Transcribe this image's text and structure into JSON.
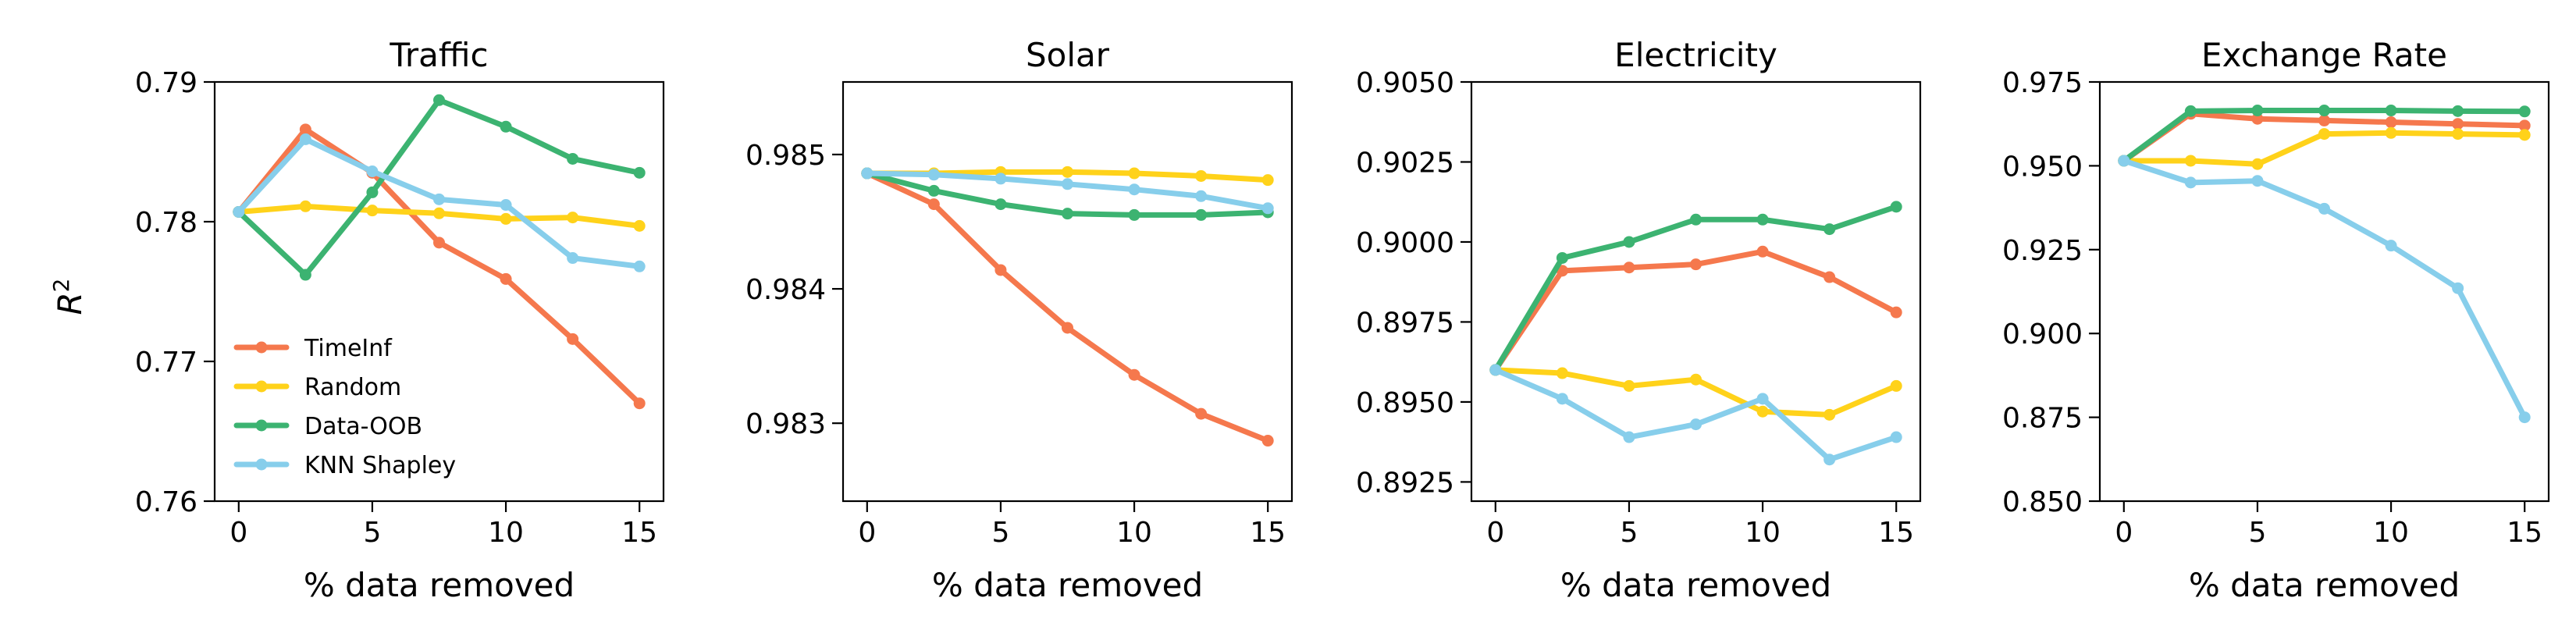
{
  "colors": {
    "TimeInf": "#f5784d",
    "Random": "#ffd21a",
    "Data-OOB": "#3cb371",
    "KNN Shapley": "#87ceeb"
  },
  "ylabel": "R",
  "ylabel_superscript": "2",
  "legend": {
    "placement": "lower-left of first panel",
    "entries": [
      "TimeInf",
      "Random",
      "Data-OOB",
      "KNN Shapley"
    ]
  },
  "chart_data": [
    {
      "type": "line",
      "title": "Traffic",
      "xlabel": "% data removed",
      "x": [
        0,
        2.5,
        5,
        7.5,
        10,
        12.5,
        15
      ],
      "xticks": [
        0,
        5,
        10,
        15
      ],
      "xtick_labels": [
        "0",
        "5",
        "10",
        "15"
      ],
      "xlim": [
        -0.9,
        15.9
      ],
      "ylim": [
        0.76,
        0.79
      ],
      "yticks": [
        0.76,
        0.77,
        0.78,
        0.79
      ],
      "ytick_labels": [
        "0.76",
        "0.77",
        "0.78",
        "0.79"
      ],
      "series": [
        {
          "name": "TimeInf",
          "values": [
            0.7807,
            0.7866,
            0.7835,
            0.7785,
            0.7759,
            0.7716,
            0.767
          ]
        },
        {
          "name": "Random",
          "values": [
            0.7807,
            0.7811,
            0.7808,
            0.7806,
            0.7802,
            0.7803,
            0.7797
          ]
        },
        {
          "name": "Data-OOB",
          "values": [
            0.7807,
            0.7762,
            0.7821,
            0.7887,
            0.7868,
            0.7845,
            0.7835
          ]
        },
        {
          "name": "KNN Shapley",
          "values": [
            0.7807,
            0.7859,
            0.7836,
            0.7816,
            0.7812,
            0.7774,
            0.7768
          ]
        }
      ]
    },
    {
      "type": "line",
      "title": "Solar",
      "xlabel": "% data removed",
      "x": [
        0,
        2.5,
        5,
        7.5,
        10,
        12.5,
        15
      ],
      "xticks": [
        0,
        5,
        10,
        15
      ],
      "xtick_labels": [
        "0",
        "5",
        "10",
        "15"
      ],
      "xlim": [
        -0.9,
        15.9
      ],
      "ylim": [
        0.98242,
        0.98554
      ],
      "yticks": [
        0.983,
        0.984,
        0.985
      ],
      "ytick_labels": [
        "0.983",
        "0.984",
        "0.985"
      ],
      "series": [
        {
          "name": "TimeInf",
          "values": [
            0.98486,
            0.98463,
            0.98414,
            0.98371,
            0.98336,
            0.98307,
            0.98287
          ]
        },
        {
          "name": "Random",
          "values": [
            0.98486,
            0.98486,
            0.98487,
            0.98487,
            0.98486,
            0.98484,
            0.98481
          ]
        },
        {
          "name": "Data-OOB",
          "values": [
            0.98486,
            0.98473,
            0.98463,
            0.98456,
            0.98455,
            0.98455,
            0.98457
          ]
        },
        {
          "name": "KNN Shapley",
          "values": [
            0.98486,
            0.98485,
            0.98482,
            0.98478,
            0.98474,
            0.98469,
            0.9846
          ]
        }
      ]
    },
    {
      "type": "line",
      "title": "Electricity",
      "xlabel": "% data removed",
      "x": [
        0,
        2.5,
        5,
        7.5,
        10,
        12.5,
        15
      ],
      "xticks": [
        0,
        5,
        10,
        15
      ],
      "xtick_labels": [
        "0",
        "5",
        "10",
        "15"
      ],
      "xlim": [
        -0.9,
        15.9
      ],
      "ylim": [
        0.8919,
        0.905
      ],
      "yticks": [
        0.8925,
        0.895,
        0.8975,
        0.9,
        0.9025,
        0.905
      ],
      "ytick_labels": [
        "0.8925",
        "0.8950",
        "0.8975",
        "0.9000",
        "0.9025",
        "0.9050"
      ],
      "series": [
        {
          "name": "TimeInf",
          "values": [
            0.896,
            0.8991,
            0.8992,
            0.8993,
            0.8997,
            0.8989,
            0.8978
          ]
        },
        {
          "name": "Random",
          "values": [
            0.896,
            0.8959,
            0.8955,
            0.8957,
            0.8947,
            0.8946,
            0.8955
          ]
        },
        {
          "name": "Data-OOB",
          "values": [
            0.896,
            0.8995,
            0.9,
            0.9007,
            0.9007,
            0.9004,
            0.9011
          ]
        },
        {
          "name": "KNN Shapley",
          "values": [
            0.896,
            0.8951,
            0.8939,
            0.8943,
            0.8951,
            0.8932,
            0.8939
          ]
        }
      ]
    },
    {
      "type": "line",
      "title": "Exchange Rate",
      "xlabel": "% data removed",
      "x": [
        0,
        2.5,
        5,
        7.5,
        10,
        12.5,
        15
      ],
      "xticks": [
        0,
        5,
        10,
        15
      ],
      "xtick_labels": [
        "0",
        "5",
        "10",
        "15"
      ],
      "xlim": [
        -0.9,
        15.9
      ],
      "ylim": [
        0.85,
        0.975
      ],
      "yticks": [
        0.85,
        0.875,
        0.9,
        0.925,
        0.95,
        0.975
      ],
      "ytick_labels": [
        "0.850",
        "0.875",
        "0.900",
        "0.925",
        "0.950",
        "0.975"
      ],
      "series": [
        {
          "name": "TimeInf",
          "values": [
            0.9515,
            0.9655,
            0.964,
            0.9635,
            0.963,
            0.9625,
            0.962
          ]
        },
        {
          "name": "Random",
          "values": [
            0.9515,
            0.9515,
            0.9505,
            0.9595,
            0.9598,
            0.9595,
            0.9592
          ]
        },
        {
          "name": "Data-OOB",
          "values": [
            0.9515,
            0.9663,
            0.9665,
            0.9665,
            0.9665,
            0.9663,
            0.9662
          ]
        },
        {
          "name": "KNN Shapley",
          "values": [
            0.9515,
            0.945,
            0.9455,
            0.9372,
            0.9262,
            0.9135,
            0.875
          ]
        }
      ]
    }
  ]
}
